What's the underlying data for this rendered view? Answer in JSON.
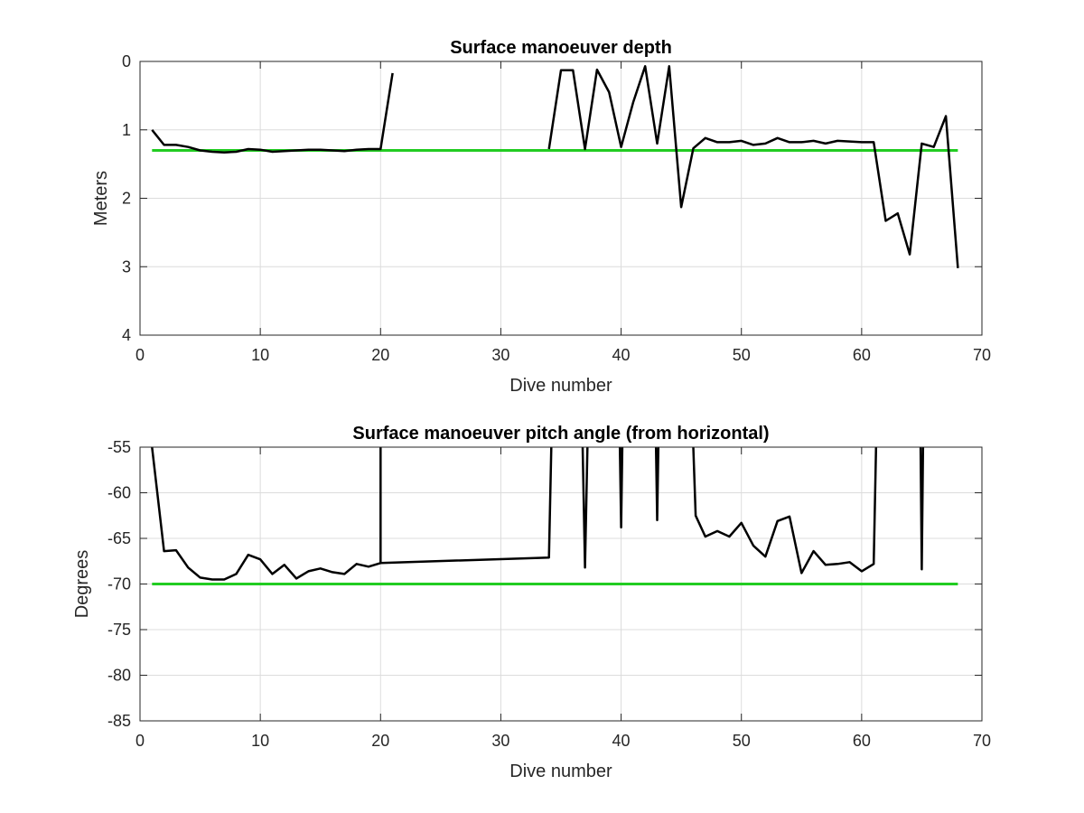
{
  "colors": {
    "series_line": "#000000",
    "threshold_line": "#22cc22",
    "grid": "#dcdcdc",
    "axes": "#262626"
  },
  "chart_data": [
    {
      "type": "line",
      "title": "Surface manoeuver depth",
      "xlabel": "Dive number",
      "ylabel": "Meters",
      "xlim": [
        0,
        70
      ],
      "ylim": [
        0,
        4
      ],
      "y_reversed": true,
      "xticks": [
        "0",
        "10",
        "20",
        "30",
        "40",
        "50",
        "60",
        "70"
      ],
      "yticks": [
        "0",
        "1",
        "2",
        "3",
        "4"
      ],
      "grid": true,
      "series": [
        {
          "values": [
            [
              1,
              1.0
            ],
            [
              2,
              1.22
            ],
            [
              3,
              1.22
            ],
            [
              4,
              1.25
            ],
            [
              5,
              1.3
            ],
            [
              6,
              1.32
            ],
            [
              7,
              1.33
            ],
            [
              8,
              1.32
            ],
            [
              9,
              1.28
            ],
            [
              10,
              1.29
            ],
            [
              11,
              1.32
            ],
            [
              12,
              1.31
            ],
            [
              13,
              1.3
            ],
            [
              14,
              1.29
            ],
            [
              15,
              1.29
            ],
            [
              16,
              1.3
            ],
            [
              17,
              1.31
            ],
            [
              18,
              1.29
            ],
            [
              19,
              1.28
            ],
            [
              20,
              1.28
            ],
            [
              21,
              0.17
            ],
            [
              null,
              null
            ],
            [
              34,
              1.28
            ],
            [
              35,
              0.13
            ],
            [
              36,
              0.13
            ],
            [
              37,
              1.28
            ],
            [
              38,
              0.12
            ],
            [
              39,
              0.45
            ],
            [
              40,
              1.25
            ],
            [
              41,
              0.6
            ],
            [
              42,
              0.07
            ],
            [
              43,
              1.2
            ],
            [
              44,
              0.07
            ],
            [
              45,
              2.13
            ],
            [
              46,
              1.27
            ],
            [
              47,
              1.12
            ],
            [
              48,
              1.18
            ],
            [
              49,
              1.18
            ],
            [
              50,
              1.16
            ],
            [
              51,
              1.22
            ],
            [
              52,
              1.2
            ],
            [
              53,
              1.12
            ],
            [
              54,
              1.18
            ],
            [
              55,
              1.18
            ],
            [
              56,
              1.16
            ],
            [
              57,
              1.2
            ],
            [
              58,
              1.16
            ],
            [
              59,
              1.17
            ],
            [
              60,
              1.18
            ],
            [
              61,
              1.18
            ],
            [
              62,
              2.33
            ],
            [
              63,
              2.22
            ],
            [
              64,
              2.82
            ],
            [
              65,
              1.2
            ],
            [
              66,
              1.25
            ],
            [
              67,
              0.8
            ],
            [
              68,
              3.02
            ]
          ]
        }
      ],
      "reference_line": {
        "y": 1.3,
        "x": [
          1,
          68
        ]
      }
    },
    {
      "type": "line",
      "title": "Surface manoeuver pitch angle (from horizontal)",
      "xlabel": "Dive number",
      "ylabel": "Degrees",
      "xlim": [
        0,
        70
      ],
      "ylim": [
        -85,
        -55
      ],
      "xticks": [
        "0",
        "10",
        "20",
        "30",
        "40",
        "50",
        "60",
        "70"
      ],
      "yticks": [
        "-55",
        "-60",
        "-65",
        "-70",
        "-75",
        "-80",
        "-85"
      ],
      "grid": true,
      "series": [
        {
          "values": [
            [
              1,
              -55
            ],
            [
              2,
              -66.4
            ],
            [
              3,
              -66.3
            ],
            [
              4,
              -68.2
            ],
            [
              5,
              -69.3
            ],
            [
              6,
              -69.5
            ],
            [
              7,
              -69.5
            ],
            [
              8,
              -68.9
            ],
            [
              9,
              -66.8
            ],
            [
              10,
              -67.3
            ],
            [
              11,
              -68.9
            ],
            [
              12,
              -67.9
            ],
            [
              13,
              -69.4
            ],
            [
              14,
              -68.6
            ],
            [
              15,
              -68.3
            ],
            [
              16,
              -68.7
            ],
            [
              17,
              -68.9
            ],
            [
              18,
              -67.8
            ],
            [
              19,
              -68.1
            ],
            [
              20,
              -67.7
            ],
            [
              20,
              -55
            ],
            [
              null,
              null
            ],
            [
              20,
              -67.7
            ],
            [
              34,
              -67.1
            ],
            [
              34.2,
              -55
            ],
            [
              null,
              null
            ],
            [
              36.8,
              -55
            ],
            [
              37,
              -68.2
            ],
            [
              37.2,
              -55
            ],
            [
              null,
              null
            ],
            [
              39.9,
              -55
            ],
            [
              40,
              -63.8
            ],
            [
              40.1,
              -55
            ],
            [
              null,
              null
            ],
            [
              42.9,
              -55
            ],
            [
              43,
              -63
            ],
            [
              43.1,
              -55
            ],
            [
              null,
              null
            ],
            [
              46,
              -55
            ],
            [
              46.2,
              -62.5
            ],
            [
              47,
              -64.8
            ],
            [
              48,
              -64.2
            ],
            [
              49,
              -64.8
            ],
            [
              50,
              -63.3
            ],
            [
              51,
              -65.8
            ],
            [
              52,
              -67
            ],
            [
              53,
              -63.1
            ],
            [
              54,
              -62.6
            ],
            [
              55,
              -68.8
            ],
            [
              56,
              -66.4
            ],
            [
              57,
              -67.9
            ],
            [
              58,
              -67.8
            ],
            [
              59,
              -67.6
            ],
            [
              60,
              -68.6
            ],
            [
              61,
              -67.8
            ],
            [
              61.2,
              -55
            ],
            [
              null,
              null
            ],
            [
              64.9,
              -55
            ],
            [
              65,
              -68.4
            ],
            [
              65.1,
              -55
            ]
          ]
        }
      ],
      "reference_line": {
        "y": -70,
        "x": [
          1,
          68
        ]
      }
    }
  ]
}
